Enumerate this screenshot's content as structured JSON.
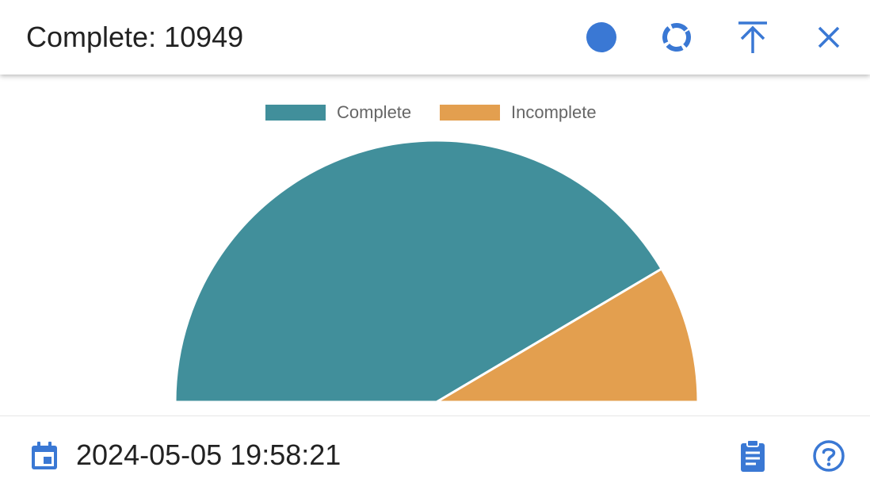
{
  "header": {
    "title": "Complete: 10949",
    "icons": [
      "filled-circle-icon",
      "donut-icon",
      "upload-to-top-icon",
      "close-icon"
    ]
  },
  "footer": {
    "date": "2024-05-05 19:58:21",
    "icons": [
      "calendar-icon",
      "clipboard-icon",
      "help-icon"
    ]
  },
  "colors": {
    "accent": "#3a78d4",
    "complete": "#418f9b",
    "incomplete": "#e39f4f"
  },
  "chart_data": {
    "type": "pie",
    "layout": "half-donut",
    "legend_position": "top-center",
    "categories": [
      "Complete",
      "Incomplete"
    ],
    "values": [
      0.83,
      0.17
    ],
    "colors": [
      "#418f9b",
      "#e39f4f"
    ]
  }
}
